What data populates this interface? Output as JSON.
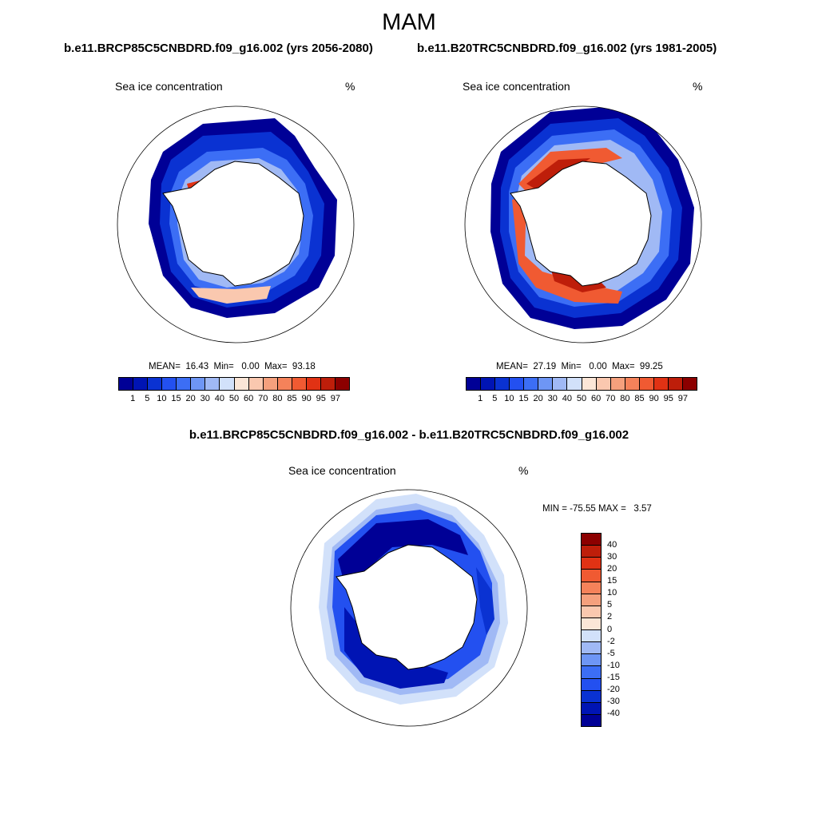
{
  "figure": {
    "title": "MAM",
    "diff_title": "b.e11.BRCP85C5CNBDRD.f09_g16.002 - b.e11.B20TRC5CNBDRD.f09_g16.002"
  },
  "panels": [
    {
      "title": "b.e11.BRCP85C5CNBDRD.f09_g16.002 (yrs 2056-2080)",
      "variable": "Sea ice concentration",
      "units": "%",
      "stats": "MEAN=  16.43  Min=   0.00  Max=  93.18",
      "colorbar": {
        "colors": [
          "#000096",
          "#0014b4",
          "#0a32d2",
          "#2350f0",
          "#3c6ef5",
          "#6e96f5",
          "#a0b9f5",
          "#d2e1fa",
          "#fbe6d7",
          "#fac8af",
          "#f5a07d",
          "#f5825a",
          "#f05a32",
          "#e13214",
          "#be1e0a",
          "#8c0000"
        ],
        "tick_labels": [
          "1",
          "5",
          "10",
          "15",
          "20",
          "30",
          "40",
          "50",
          "60",
          "70",
          "80",
          "85",
          "90",
          "95",
          "97"
        ]
      }
    },
    {
      "title": "b.e11.B20TRC5CNBDRD.f09_g16.002 (yrs 1981-2005)",
      "variable": "Sea ice concentration",
      "units": "%",
      "stats": "MEAN=  27.19  Min=   0.00  Max=  99.25",
      "colorbar": {
        "colors": [
          "#000096",
          "#0014b4",
          "#0a32d2",
          "#2350f0",
          "#3c6ef5",
          "#6e96f5",
          "#a0b9f5",
          "#d2e1fa",
          "#fbe6d7",
          "#fac8af",
          "#f5a07d",
          "#f5825a",
          "#f05a32",
          "#e13214",
          "#be1e0a",
          "#8c0000"
        ],
        "tick_labels": [
          "1",
          "5",
          "10",
          "15",
          "20",
          "30",
          "40",
          "50",
          "60",
          "70",
          "80",
          "85",
          "90",
          "95",
          "97"
        ]
      }
    },
    {
      "variable": "Sea ice concentration",
      "units": "%",
      "stats": "MIN = -75.55 MAX =   3.57",
      "colorbar": {
        "colors": [
          "#8c0000",
          "#be1e0a",
          "#e13214",
          "#f05a32",
          "#f5825a",
          "#f5a07d",
          "#fac8af",
          "#fbe6d7",
          "#d2e1fa",
          "#a0b9f5",
          "#6e96f5",
          "#3c6ef5",
          "#2350f0",
          "#0a32d2",
          "#0014b4",
          "#000096"
        ],
        "tick_labels": [
          "40",
          "30",
          "20",
          "15",
          "10",
          "5",
          "2",
          "0",
          "-2",
          "-5",
          "-10",
          "-15",
          "-20",
          "-30",
          "-40"
        ]
      }
    }
  ]
}
